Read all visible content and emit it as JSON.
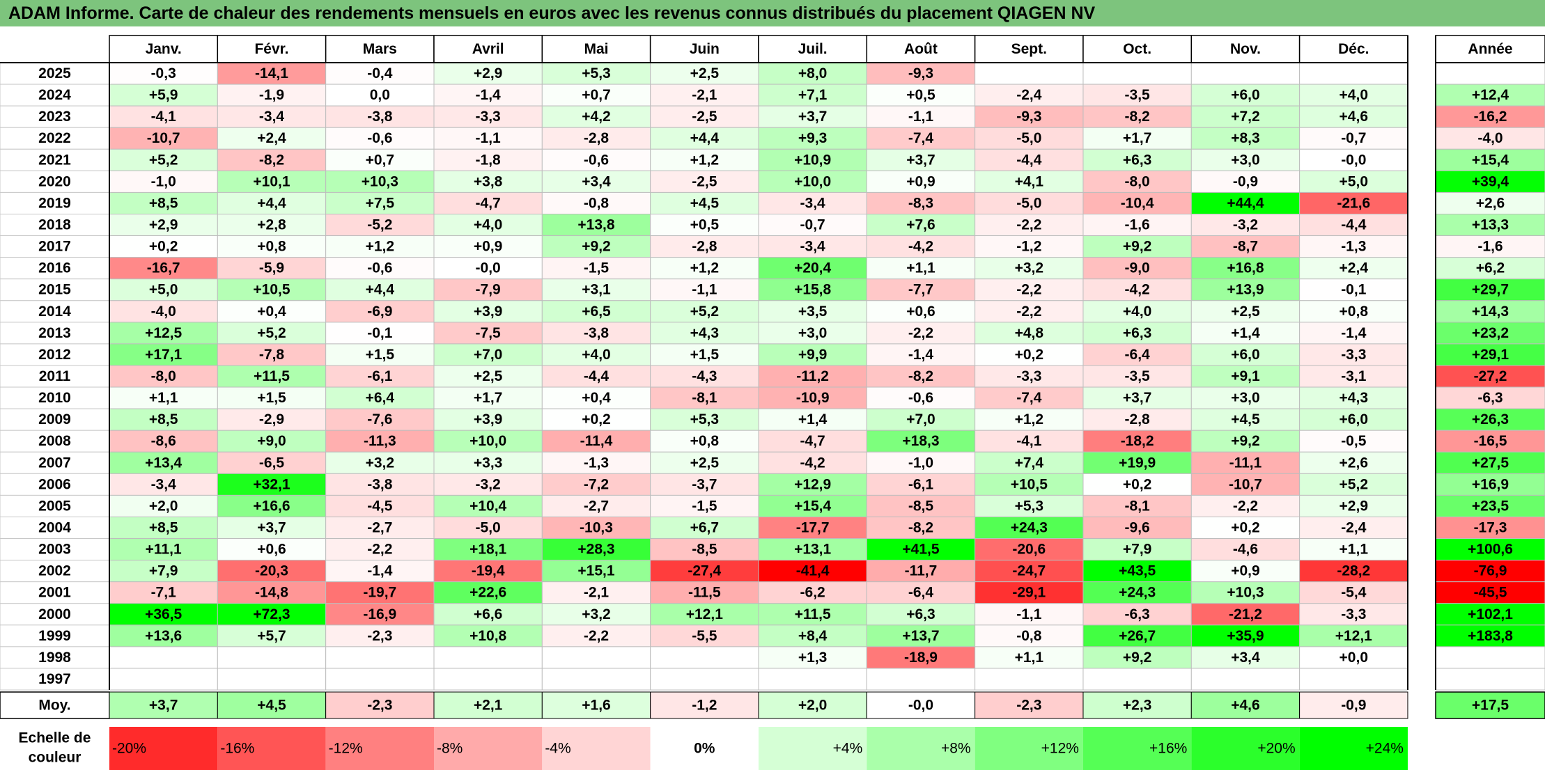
{
  "title": "ADAM Informe. Carte de chaleur des rendements mensuels en euros avec les revenus connus distribués du placement QIAGEN NV",
  "chart_data": {
    "type": "heatmap",
    "title": "ADAM Informe. Carte de chaleur des rendements mensuels en euros avec les revenus connus distribués du placement QIAGEN NV",
    "columns": [
      "Janv.",
      "Févr.",
      "Mars",
      "Avril",
      "Mai",
      "Juin",
      "Juil.",
      "Août",
      "Sept.",
      "Oct.",
      "Nov.",
      "Déc."
    ],
    "annual_header": "Année",
    "rows": [
      {
        "year": "2025",
        "months": [
          "-0,3",
          "-14,1",
          "-0,4",
          "+2,9",
          "+5,3",
          "+2,5",
          "+8,0",
          "-9,3",
          "",
          "",
          "",
          ""
        ],
        "annual": ""
      },
      {
        "year": "2024",
        "months": [
          "+5,9",
          "-1,9",
          "0,0",
          "-1,4",
          "+0,7",
          "-2,1",
          "+7,1",
          "+0,5",
          "-2,4",
          "-3,5",
          "+6,0",
          "+4,0"
        ],
        "annual": "+12,4"
      },
      {
        "year": "2023",
        "months": [
          "-4,1",
          "-3,4",
          "-3,8",
          "-3,3",
          "+4,2",
          "-2,5",
          "+3,7",
          "-1,1",
          "-9,3",
          "-8,2",
          "+7,2",
          "+4,6"
        ],
        "annual": "-16,2"
      },
      {
        "year": "2022",
        "months": [
          "-10,7",
          "+2,4",
          "-0,6",
          "-1,1",
          "-2,8",
          "+4,4",
          "+9,3",
          "-7,4",
          "-5,0",
          "+1,7",
          "+8,3",
          "-0,7"
        ],
        "annual": "-4,0"
      },
      {
        "year": "2021",
        "months": [
          "+5,2",
          "-8,2",
          "+0,7",
          "-1,8",
          "-0,6",
          "+1,2",
          "+10,9",
          "+3,7",
          "-4,4",
          "+6,3",
          "+3,0",
          "-0,0"
        ],
        "annual": "+15,4"
      },
      {
        "year": "2020",
        "months": [
          "-1,0",
          "+10,1",
          "+10,3",
          "+3,8",
          "+3,4",
          "-2,5",
          "+10,0",
          "+0,9",
          "+4,1",
          "-8,0",
          "-0,9",
          "+5,0"
        ],
        "annual": "+39,4"
      },
      {
        "year": "2019",
        "months": [
          "+8,5",
          "+4,4",
          "+7,5",
          "-4,7",
          "-0,8",
          "+4,5",
          "-3,4",
          "-8,3",
          "-5,0",
          "-10,4",
          "+44,4",
          "-21,6"
        ],
        "annual": "+2,6"
      },
      {
        "year": "2018",
        "months": [
          "+2,9",
          "+2,8",
          "-5,2",
          "+4,0",
          "+13,8",
          "+0,5",
          "-0,7",
          "+7,6",
          "-2,2",
          "-1,6",
          "-3,2",
          "-4,4"
        ],
        "annual": "+13,3"
      },
      {
        "year": "2017",
        "months": [
          "+0,2",
          "+0,8",
          "+1,2",
          "+0,9",
          "+9,2",
          "-2,8",
          "-3,4",
          "-4,2",
          "-1,2",
          "+9,2",
          "-8,7",
          "-1,3"
        ],
        "annual": "-1,6"
      },
      {
        "year": "2016",
        "months": [
          "-16,7",
          "-5,9",
          "-0,6",
          "-0,0",
          "-1,5",
          "+1,2",
          "+20,4",
          "+1,1",
          "+3,2",
          "-9,0",
          "+16,8",
          "+2,4"
        ],
        "annual": "+6,2"
      },
      {
        "year": "2015",
        "months": [
          "+5,0",
          "+10,5",
          "+4,4",
          "-7,9",
          "+3,1",
          "-1,1",
          "+15,8",
          "-7,7",
          "-2,2",
          "-4,2",
          "+13,9",
          "-0,1"
        ],
        "annual": "+29,7"
      },
      {
        "year": "2014",
        "months": [
          "-4,0",
          "+0,4",
          "-6,9",
          "+3,9",
          "+6,5",
          "+5,2",
          "+3,5",
          "+0,6",
          "-2,2",
          "+4,0",
          "+2,5",
          "+0,8"
        ],
        "annual": "+14,3"
      },
      {
        "year": "2013",
        "months": [
          "+12,5",
          "+5,2",
          "-0,1",
          "-7,5",
          "-3,8",
          "+4,3",
          "+3,0",
          "-2,2",
          "+4,8",
          "+6,3",
          "+1,4",
          "-1,4"
        ],
        "annual": "+23,2"
      },
      {
        "year": "2012",
        "months": [
          "+17,1",
          "-7,8",
          "+1,5",
          "+7,0",
          "+4,0",
          "+1,5",
          "+9,9",
          "-1,4",
          "+0,2",
          "-6,4",
          "+6,0",
          "-3,3"
        ],
        "annual": "+29,1"
      },
      {
        "year": "2011",
        "months": [
          "-8,0",
          "+11,5",
          "-6,1",
          "+2,5",
          "-4,4",
          "-4,3",
          "-11,2",
          "-8,2",
          "-3,3",
          "-3,5",
          "+9,1",
          "-3,1"
        ],
        "annual": "-27,2"
      },
      {
        "year": "2010",
        "months": [
          "+1,1",
          "+1,5",
          "+6,4",
          "+1,7",
          "+0,4",
          "-8,1",
          "-10,9",
          "-0,6",
          "-7,4",
          "+3,7",
          "+3,0",
          "+4,3"
        ],
        "annual": "-6,3"
      },
      {
        "year": "2009",
        "months": [
          "+8,5",
          "-2,9",
          "-7,6",
          "+3,9",
          "+0,2",
          "+5,3",
          "+1,4",
          "+7,0",
          "+1,2",
          "-2,8",
          "+4,5",
          "+6,0"
        ],
        "annual": "+26,3"
      },
      {
        "year": "2008",
        "months": [
          "-8,6",
          "+9,0",
          "-11,3",
          "+10,0",
          "-11,4",
          "+0,8",
          "-4,7",
          "+18,3",
          "-4,1",
          "-18,2",
          "+9,2",
          "-0,5"
        ],
        "annual": "-16,5"
      },
      {
        "year": "2007",
        "months": [
          "+13,4",
          "-6,5",
          "+3,2",
          "+3,3",
          "-1,3",
          "+2,5",
          "-4,2",
          "-1,0",
          "+7,4",
          "+19,9",
          "-11,1",
          "+2,6"
        ],
        "annual": "+27,5"
      },
      {
        "year": "2006",
        "months": [
          "-3,4",
          "+32,1",
          "-3,8",
          "-3,2",
          "-7,2",
          "-3,7",
          "+12,9",
          "-6,1",
          "+10,5",
          "+0,2",
          "-10,7",
          "+5,2"
        ],
        "annual": "+16,9"
      },
      {
        "year": "2005",
        "months": [
          "+2,0",
          "+16,6",
          "-4,5",
          "+10,4",
          "-2,7",
          "-1,5",
          "+15,4",
          "-8,5",
          "+5,3",
          "-8,1",
          "-2,2",
          "+2,9"
        ],
        "annual": "+23,5"
      },
      {
        "year": "2004",
        "months": [
          "+8,5",
          "+3,7",
          "-2,7",
          "-5,0",
          "-10,3",
          "+6,7",
          "-17,7",
          "-8,2",
          "+24,3",
          "-9,6",
          "+0,2",
          "-2,4"
        ],
        "annual": "-17,3"
      },
      {
        "year": "2003",
        "months": [
          "+11,1",
          "+0,6",
          "-2,2",
          "+18,1",
          "+28,3",
          "-8,5",
          "+13,1",
          "+41,5",
          "-20,6",
          "+7,9",
          "-4,6",
          "+1,1"
        ],
        "annual": "+100,6"
      },
      {
        "year": "2002",
        "months": [
          "+7,9",
          "-20,3",
          "-1,4",
          "-19,4",
          "+15,1",
          "-27,4",
          "-41,4",
          "-11,7",
          "-24,7",
          "+43,5",
          "+0,9",
          "-28,2"
        ],
        "annual": "-76,9"
      },
      {
        "year": "2001",
        "months": [
          "-7,1",
          "-14,8",
          "-19,7",
          "+22,6",
          "-2,1",
          "-11,5",
          "-6,2",
          "-6,4",
          "-29,1",
          "+24,3",
          "+10,3",
          "-5,4"
        ],
        "annual": "-45,5"
      },
      {
        "year": "2000",
        "months": [
          "+36,5",
          "+72,3",
          "-16,9",
          "+6,6",
          "+3,2",
          "+12,1",
          "+11,5",
          "+6,3",
          "-1,1",
          "-6,3",
          "-21,2",
          "-3,3"
        ],
        "annual": "+102,1"
      },
      {
        "year": "1999",
        "months": [
          "+13,6",
          "+5,7",
          "-2,3",
          "+10,8",
          "-2,2",
          "-5,5",
          "+8,4",
          "+13,7",
          "-0,8",
          "+26,7",
          "+35,9",
          "+12,1"
        ],
        "annual": "+183,8"
      },
      {
        "year": "1998",
        "months": [
          "",
          "",
          "",
          "",
          "",
          "",
          "+1,3",
          "-18,9",
          "+1,1",
          "+9,2",
          "+3,4",
          "+0,0"
        ],
        "annual": ""
      },
      {
        "year": "1997",
        "months": [
          "",
          "",
          "",
          "",
          "",
          "",
          "",
          "",
          "",
          "",
          "",
          ""
        ],
        "annual": ""
      }
    ],
    "average": {
      "label": "Moy.",
      "months": [
        "+3,7",
        "+4,5",
        "-2,3",
        "+2,1",
        "+1,6",
        "-1,2",
        "+2,0",
        "-0,0",
        "-2,3",
        "+2,3",
        "+4,6",
        "-0,9"
      ],
      "annual": "+17,5"
    },
    "scale": {
      "label_line1": "Echelle de",
      "label_line2": "couleur",
      "items": [
        "-20%",
        "-16%",
        "-12%",
        "-8%",
        "-4%",
        "0%",
        "+4%",
        "+8%",
        "+12%",
        "+16%",
        "+20%",
        "+24%"
      ],
      "values": [
        -20,
        -16,
        -12,
        -8,
        -4,
        0,
        4,
        8,
        12,
        16,
        20,
        24
      ]
    },
    "colors": {
      "negative_max": "#ff0000",
      "positive_max": "#00ff00",
      "neutral": "#ffffff",
      "title_background": "#7dc47d"
    }
  }
}
